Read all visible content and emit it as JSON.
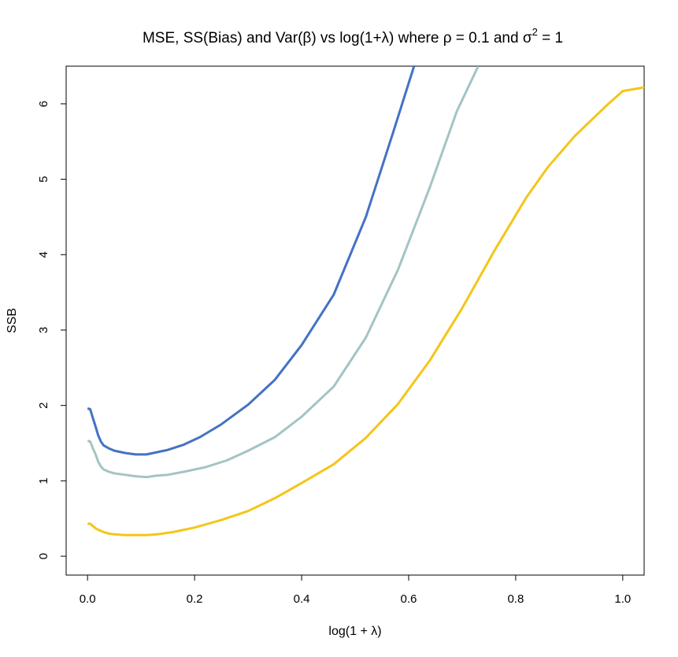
{
  "chart_data": {
    "type": "line",
    "title": {
      "main": "MSE, SS(Bias) and Var(β) vs log(1+λ) where ρ = 0.1 and σ",
      "superscript": "2",
      "tail": " = 1"
    },
    "xlabel": "log(1 + λ)",
    "ylabel": "SSB",
    "xlim": [
      -0.04,
      1.04
    ],
    "ylim": [
      -0.25,
      6.5
    ],
    "x_ticks": [
      "0.0",
      "0.2",
      "0.4",
      "0.6",
      "0.8",
      "1.0"
    ],
    "y_ticks": [
      "0",
      "1",
      "2",
      "3",
      "4",
      "5",
      "6"
    ],
    "grid": false,
    "legend": "none",
    "series": [
      {
        "color": "#4472c4",
        "x": [
          0.0,
          0.005,
          0.01,
          0.015,
          0.02,
          0.025,
          0.03,
          0.04,
          0.05,
          0.07,
          0.09,
          0.11,
          0.13,
          0.15,
          0.18,
          0.21,
          0.25,
          0.3,
          0.35,
          0.4,
          0.46,
          0.52,
          0.57,
          0.61
        ],
        "y": [
          1.96,
          1.95,
          1.83,
          1.72,
          1.6,
          1.52,
          1.47,
          1.43,
          1.4,
          1.37,
          1.35,
          1.35,
          1.38,
          1.41,
          1.48,
          1.58,
          1.75,
          2.01,
          2.34,
          2.8,
          3.47,
          4.5,
          5.6,
          6.5
        ]
      },
      {
        "color": "#a3c4c4",
        "x": [
          0.0,
          0.005,
          0.01,
          0.015,
          0.02,
          0.025,
          0.03,
          0.04,
          0.05,
          0.07,
          0.09,
          0.11,
          0.13,
          0.15,
          0.18,
          0.22,
          0.26,
          0.3,
          0.35,
          0.4,
          0.46,
          0.52,
          0.58,
          0.64,
          0.69,
          0.73
        ],
        "y": [
          1.53,
          1.52,
          1.43,
          1.35,
          1.25,
          1.19,
          1.15,
          1.12,
          1.1,
          1.08,
          1.06,
          1.05,
          1.07,
          1.08,
          1.12,
          1.18,
          1.27,
          1.4,
          1.58,
          1.85,
          2.25,
          2.9,
          3.8,
          4.9,
          5.9,
          6.5
        ]
      },
      {
        "color": "#f5c518",
        "x": [
          0.0,
          0.005,
          0.01,
          0.015,
          0.02,
          0.03,
          0.04,
          0.05,
          0.07,
          0.09,
          0.11,
          0.13,
          0.16,
          0.2,
          0.25,
          0.3,
          0.35,
          0.4,
          0.46,
          0.52,
          0.58,
          0.64,
          0.7,
          0.76,
          0.82,
          0.86,
          0.91,
          0.97,
          1.0,
          1.04
        ],
        "y": [
          0.43,
          0.43,
          0.4,
          0.37,
          0.35,
          0.32,
          0.3,
          0.29,
          0.28,
          0.28,
          0.28,
          0.29,
          0.32,
          0.38,
          0.48,
          0.6,
          0.77,
          0.97,
          1.22,
          1.57,
          2.02,
          2.6,
          3.29,
          4.05,
          4.76,
          5.16,
          5.57,
          5.98,
          6.17,
          6.22
        ]
      }
    ]
  }
}
